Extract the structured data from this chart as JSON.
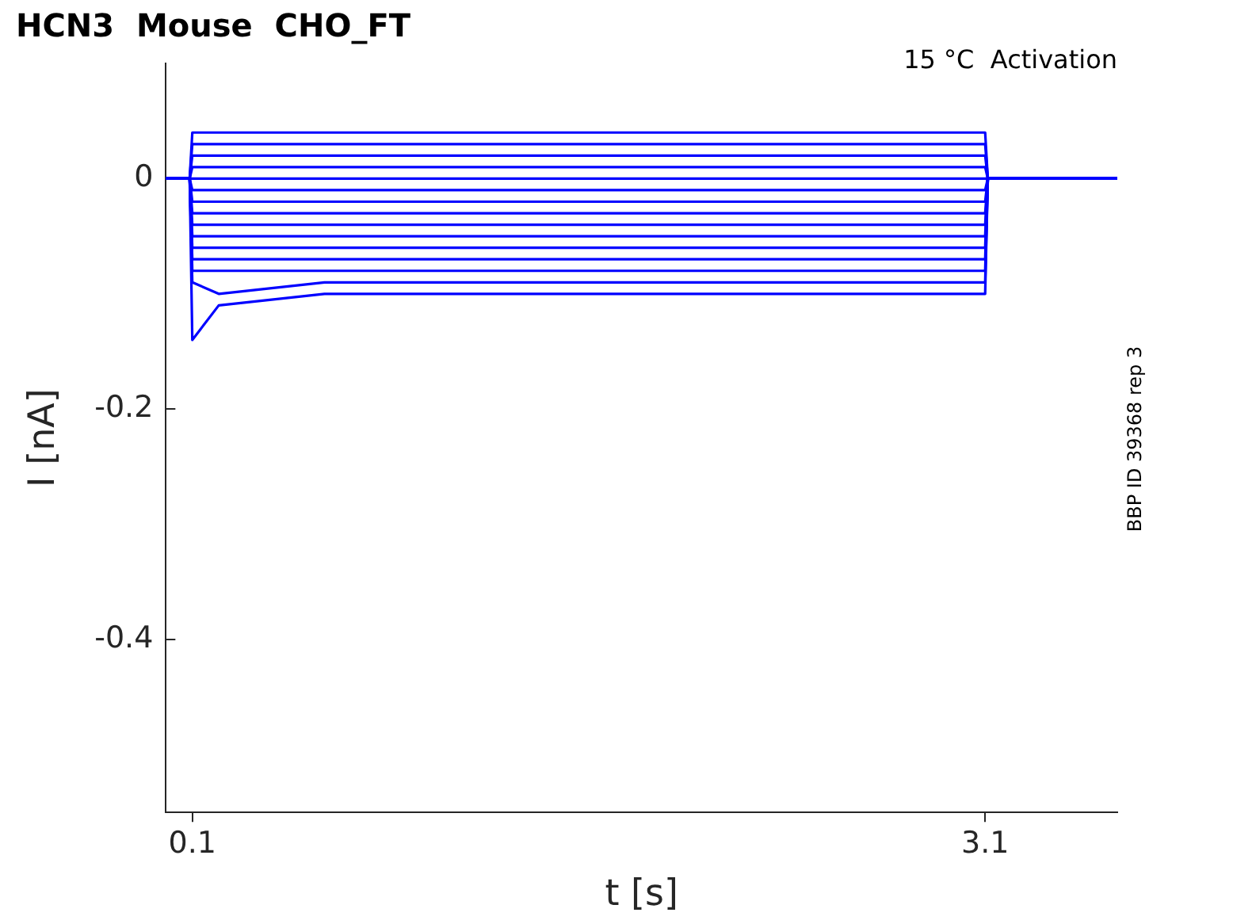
{
  "chart_data": {
    "type": "line",
    "title": "HCN3  Mouse  CHO_FT",
    "xlabel": "t [s]",
    "ylabel": "I [nA]",
    "annotations": [
      "15 °C  Activation",
      "BBP ID 39368 rep 3"
    ],
    "x": [
      0,
      0.09,
      0.1,
      0.2,
      0.6,
      1.2,
      1.8,
      2.4,
      3.0,
      3.1,
      3.11,
      3.6
    ],
    "series": [
      {
        "color": "#0000ff",
        "values": [
          0,
          0,
          0.04,
          0.04,
          0.04,
          0.04,
          0.04,
          0.04,
          0.04,
          0.04,
          0,
          0
        ]
      },
      {
        "color": "#0000ff",
        "values": [
          0,
          0,
          0.03,
          0.03,
          0.03,
          0.03,
          0.03,
          0.03,
          0.03,
          0.03,
          0,
          0
        ]
      },
      {
        "color": "#0000ff",
        "values": [
          0,
          0,
          0.02,
          0.02,
          0.02,
          0.02,
          0.02,
          0.02,
          0.02,
          0.02,
          0,
          0
        ]
      },
      {
        "color": "#0000ff",
        "values": [
          0,
          0,
          0.01,
          0.01,
          0.01,
          0.01,
          0.01,
          0.01,
          0.01,
          0.01,
          0,
          0
        ]
      },
      {
        "color": "#0000ff",
        "values": [
          0,
          0,
          0,
          0,
          0,
          0,
          0,
          0,
          0,
          0,
          0,
          0
        ]
      },
      {
        "color": "#0000ff",
        "values": [
          0,
          0,
          -0.01,
          -0.01,
          -0.01,
          -0.01,
          -0.01,
          -0.01,
          -0.01,
          -0.01,
          0,
          0
        ]
      },
      {
        "color": "#0000ff",
        "values": [
          0,
          0,
          -0.02,
          -0.02,
          -0.02,
          -0.02,
          -0.02,
          -0.02,
          -0.02,
          -0.02,
          0,
          0
        ]
      },
      {
        "color": "#0000ff",
        "values": [
          0,
          0,
          -0.03,
          -0.03,
          -0.03,
          -0.03,
          -0.03,
          -0.03,
          -0.03,
          -0.03,
          0,
          0
        ]
      },
      {
        "color": "#0000ff",
        "values": [
          0,
          0,
          -0.04,
          -0.04,
          -0.04,
          -0.04,
          -0.04,
          -0.04,
          -0.04,
          -0.04,
          0,
          0
        ]
      },
      {
        "color": "#0000ff",
        "values": [
          0,
          0,
          -0.05,
          -0.05,
          -0.05,
          -0.05,
          -0.05,
          -0.05,
          -0.05,
          -0.05,
          0,
          0
        ]
      },
      {
        "color": "#0000ff",
        "values": [
          0,
          0,
          -0.06,
          -0.06,
          -0.06,
          -0.06,
          -0.06,
          -0.06,
          -0.06,
          -0.06,
          0,
          0
        ]
      },
      {
        "color": "#0000ff",
        "values": [
          0,
          0,
          -0.07,
          -0.07,
          -0.07,
          -0.07,
          -0.07,
          -0.07,
          -0.07,
          -0.07,
          0,
          0
        ]
      },
      {
        "color": "#0000ff",
        "values": [
          0,
          0,
          -0.08,
          -0.08,
          -0.08,
          -0.08,
          -0.08,
          -0.08,
          -0.08,
          -0.08,
          0,
          0
        ]
      },
      {
        "color": "#0000ff",
        "values": [
          0,
          0,
          -0.09,
          -0.1,
          -0.09,
          -0.09,
          -0.09,
          -0.09,
          -0.09,
          -0.09,
          0,
          0
        ]
      },
      {
        "color": "#0000ff",
        "values": [
          0,
          0,
          -0.14,
          -0.11,
          -0.1,
          -0.1,
          -0.1,
          -0.1,
          -0.1,
          -0.1,
          0,
          0
        ]
      }
    ],
    "xlim": [
      0,
      3.6
    ],
    "ylim": [
      -0.55,
      0.1
    ],
    "xticks": [
      0.1,
      3.1
    ],
    "yticks": [
      0,
      -0.2,
      -0.4
    ],
    "legend": false,
    "grid": false,
    "marker": "none",
    "line_style": "solid"
  }
}
